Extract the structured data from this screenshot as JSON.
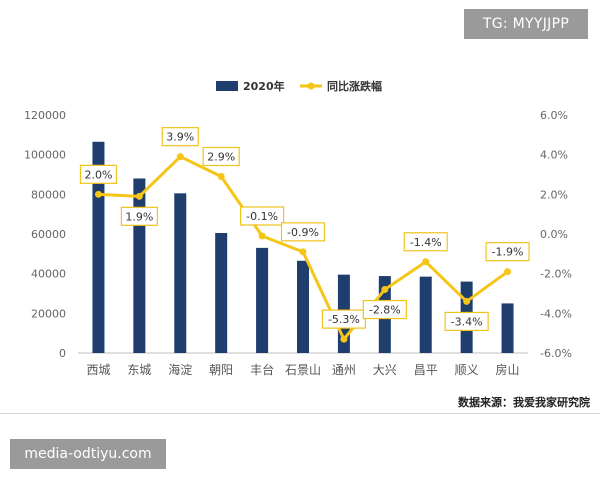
{
  "watermark_top": "TG: MYYJJPP",
  "watermark_bottom": "media-odtiyu.com",
  "source_note": "数据来源：我爱我家研究院",
  "colors": {
    "bar": "#1f3d6d",
    "line": "#f5c518",
    "label_border": "#f0c419",
    "axis_text": "#666666",
    "gridline": "#e6e6e6"
  },
  "chart_data": {
    "type": "bar",
    "categories": [
      "西城",
      "东城",
      "海淀",
      "朝阳",
      "丰台",
      "石景山",
      "通州",
      "大兴",
      "昌平",
      "顺义",
      "房山"
    ],
    "series": [
      {
        "name": "2020年",
        "type": "bar",
        "axis": "left",
        "values": [
          106500,
          88000,
          80500,
          60500,
          53000,
          46500,
          39500,
          38800,
          38500,
          36000,
          25000
        ]
      },
      {
        "name": "同比涨跌幅",
        "type": "line",
        "axis": "right",
        "values": [
          2.0,
          1.9,
          3.9,
          2.9,
          -0.1,
          -0.9,
          -5.3,
          -2.8,
          -1.4,
          -3.4,
          -1.9
        ],
        "labels": [
          "2.0%",
          "1.9%",
          "3.9%",
          "2.9%",
          "-0.1%",
          "-0.9%",
          "-5.3%",
          "-2.8%",
          "-1.4%",
          "-3.4%",
          "-1.9%"
        ]
      }
    ],
    "y_left": {
      "ylim": [
        0,
        120000
      ],
      "ticks": [
        "0",
        "20000",
        "40000",
        "60000",
        "80000",
        "100000",
        "120000"
      ]
    },
    "y_right": {
      "ylim": [
        -6.0,
        6.0
      ],
      "ticks": [
        "-6.0%",
        "-4.0%",
        "-2.0%",
        "0.0%",
        "2.0%",
        "4.0%",
        "6.0%"
      ]
    },
    "legend_position": "top-center",
    "grid": false
  }
}
